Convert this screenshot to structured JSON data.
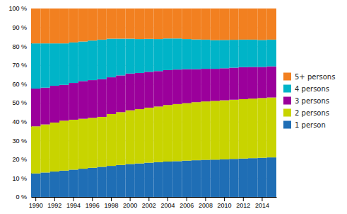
{
  "chart_data": {
    "type": "bar",
    "stacked": true,
    "categories": [
      "1990",
      null,
      "1992",
      null,
      "1994",
      null,
      "1996",
      null,
      "1998",
      null,
      "2000",
      null,
      "2002",
      null,
      "2004",
      null,
      "2006",
      null,
      "2008",
      null,
      "2010",
      null,
      "2012",
      null,
      "2014",
      null
    ],
    "series": [
      {
        "name": "1 person",
        "color": "#1f6eb5",
        "values": [
          12.5,
          13.0,
          13.5,
          14.0,
          14.5,
          15.0,
          15.5,
          16.0,
          16.5,
          17.0,
          17.5,
          17.8,
          18.2,
          18.5,
          18.8,
          19.0,
          19.3,
          19.5,
          19.7,
          19.8,
          20.0,
          20.2,
          20.4,
          20.6,
          20.8,
          21.0
        ]
      },
      {
        "name": "2 persons",
        "color": "#c8d400",
        "values": [
          25.0,
          25.5,
          26.0,
          26.5,
          26.5,
          26.5,
          26.5,
          26.5,
          27.5,
          28.0,
          28.5,
          28.8,
          29.2,
          29.5,
          30.0,
          30.3,
          30.5,
          30.8,
          31.0,
          31.2,
          31.3,
          31.4,
          31.5,
          31.6,
          31.7,
          31.8
        ]
      },
      {
        "name": "3 persons",
        "color": "#9b009b",
        "values": [
          20.0,
          19.5,
          19.5,
          19.0,
          19.5,
          20.0,
          20.0,
          20.0,
          19.5,
          19.5,
          19.5,
          19.2,
          19.0,
          18.8,
          18.5,
          18.3,
          18.0,
          17.5,
          17.3,
          17.0,
          17.0,
          17.0,
          17.0,
          16.8,
          16.5,
          16.5
        ]
      },
      {
        "name": "4 persons",
        "color": "#00b4c8",
        "values": [
          24.0,
          23.5,
          22.5,
          22.0,
          21.5,
          21.0,
          21.0,
          21.0,
          20.5,
          19.5,
          18.5,
          18.0,
          17.5,
          17.0,
          16.8,
          16.5,
          16.0,
          15.8,
          15.5,
          15.2,
          15.0,
          14.8,
          14.6,
          14.5,
          14.3,
          14.2
        ]
      },
      {
        "name": "5+ persons",
        "color": "#f28020",
        "values": [
          18.5,
          18.5,
          18.5,
          18.5,
          18.0,
          17.5,
          17.0,
          16.5,
          16.0,
          16.0,
          16.0,
          16.2,
          16.1,
          16.2,
          15.9,
          15.9,
          16.2,
          16.4,
          16.5,
          16.8,
          16.7,
          16.6,
          16.5,
          16.5,
          16.7,
          16.5
        ]
      }
    ],
    "ylim": [
      0,
      100
    ],
    "yticks": [
      {
        "value": 0,
        "label": "0 %"
      },
      {
        "value": 10,
        "label": "10 %"
      },
      {
        "value": 20,
        "label": "20 %"
      },
      {
        "value": 30,
        "label": "30 %"
      },
      {
        "value": 40,
        "label": "40 %"
      },
      {
        "value": 50,
        "label": "50 %"
      },
      {
        "value": 60,
        "label": "60 %"
      },
      {
        "value": 70,
        "label": "70 %"
      },
      {
        "value": 80,
        "label": "80 %"
      },
      {
        "value": 90,
        "label": "90 %"
      },
      {
        "value": 100,
        "label": "100 %"
      }
    ],
    "grid": true,
    "legend": "right"
  }
}
